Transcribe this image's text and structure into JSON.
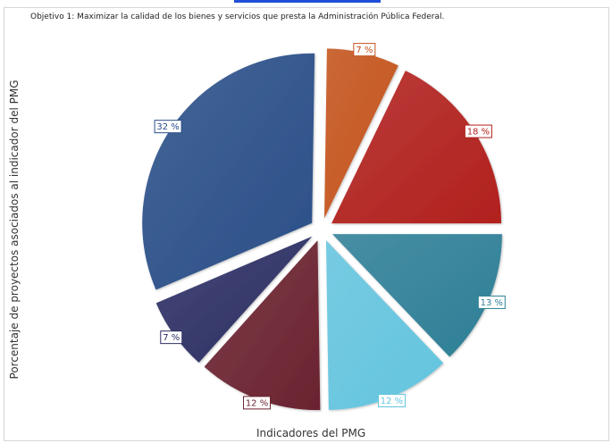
{
  "chart_data": {
    "type": "pie",
    "title": "Objetivo 1: Maximizar la calidad de los bienes y servicios que presta la Administración Pública Federal.",
    "xlabel": "Indicadores del PMG",
    "ylabel": "Porcentaje de proyectos asociados al indicador del PMG",
    "legend": "none",
    "slices": [
      {
        "label": "13 %",
        "value": 13,
        "color": "#2e7f96"
      },
      {
        "label": "12 %",
        "value": 12,
        "color": "#63c4de"
      },
      {
        "label": "12 %",
        "value": 12,
        "color": "#6a2330"
      },
      {
        "label": "7 %",
        "value": 7,
        "color": "#2c2f63"
      },
      {
        "label": "32 %",
        "value": 32,
        "color": "#2a4f88"
      },
      {
        "label": "7 %",
        "value": 7,
        "color": "#c4531c"
      },
      {
        "label": "18 %",
        "value": 18,
        "color": "#b1211e"
      }
    ]
  }
}
